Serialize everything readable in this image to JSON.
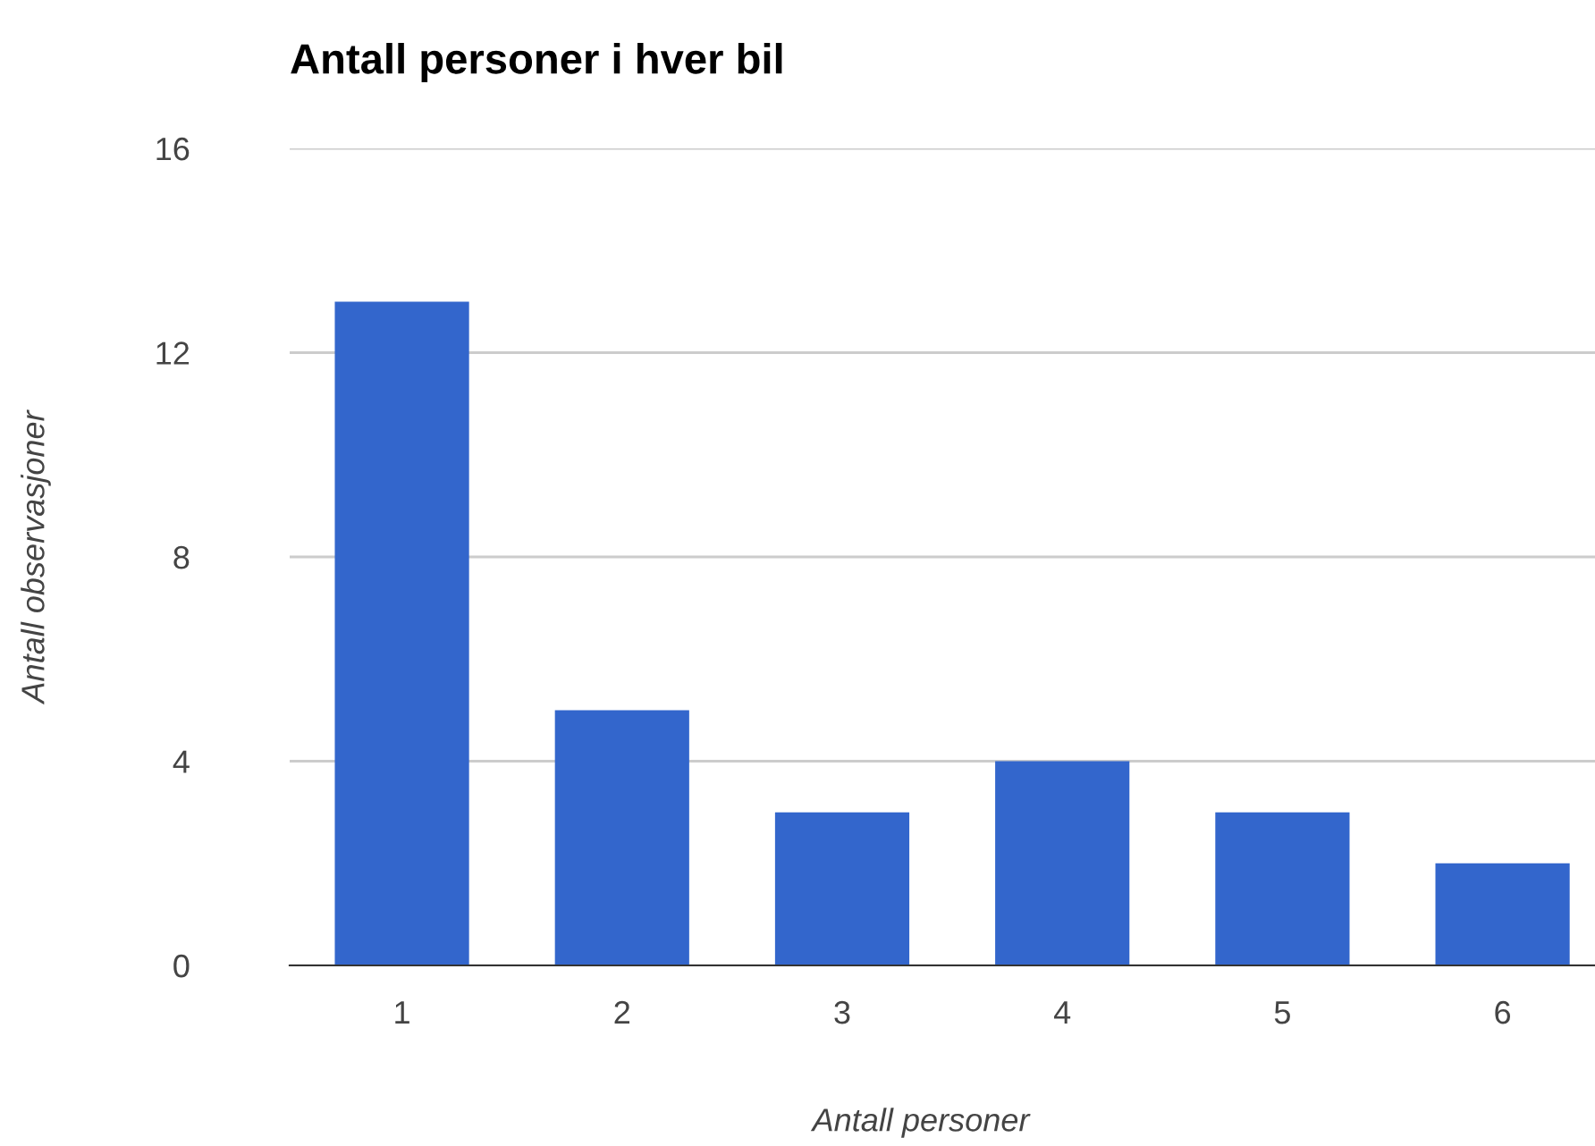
{
  "chart_data": {
    "type": "bar",
    "title": "Antall personer i hver bil",
    "xlabel": "Antall personer",
    "ylabel": "Antall observasjoner",
    "categories": [
      "1",
      "2",
      "3",
      "4",
      "5",
      "6"
    ],
    "values": [
      13,
      5,
      3,
      4,
      3,
      2
    ],
    "color": "#3366cc",
    "ylim": [
      0,
      16
    ],
    "yticks": [
      0,
      4,
      8,
      12,
      16
    ],
    "grid": "y",
    "legend": false
  }
}
